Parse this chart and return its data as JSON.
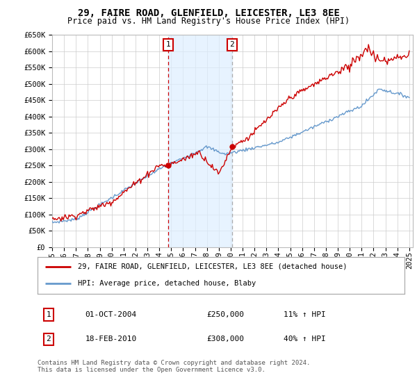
{
  "title": "29, FAIRE ROAD, GLENFIELD, LEICESTER, LE3 8EE",
  "subtitle": "Price paid vs. HM Land Registry's House Price Index (HPI)",
  "legend_line1": "29, FAIRE ROAD, GLENFIELD, LEICESTER, LE3 8EE (detached house)",
  "legend_line2": "HPI: Average price, detached house, Blaby",
  "transaction1_date": "01-OCT-2004",
  "transaction1_price": "£250,000",
  "transaction1_hpi": "11% ↑ HPI",
  "transaction2_date": "18-FEB-2010",
  "transaction2_price": "£308,000",
  "transaction2_hpi": "40% ↑ HPI",
  "footer": "Contains HM Land Registry data © Crown copyright and database right 2024.\nThis data is licensed under the Open Government Licence v3.0.",
  "ylim": [
    0,
    650000
  ],
  "yticks": [
    0,
    50000,
    100000,
    150000,
    200000,
    250000,
    300000,
    350000,
    400000,
    450000,
    500000,
    550000,
    600000,
    650000
  ],
  "ytick_labels": [
    "£0",
    "£50K",
    "£100K",
    "£150K",
    "£200K",
    "£250K",
    "£300K",
    "£350K",
    "£400K",
    "£450K",
    "£500K",
    "£550K",
    "£600K",
    "£650K"
  ],
  "xtick_years": [
    1995,
    1996,
    1997,
    1998,
    1999,
    2000,
    2001,
    2002,
    2003,
    2004,
    2005,
    2006,
    2007,
    2008,
    2009,
    2010,
    2011,
    2012,
    2013,
    2014,
    2015,
    2016,
    2017,
    2018,
    2019,
    2020,
    2021,
    2022,
    2023,
    2024,
    2025
  ],
  "red_line_color": "#cc0000",
  "blue_line_color": "#6699cc",
  "shade_color": "#ddeeff",
  "transaction1_x": 2004.75,
  "transaction2_x": 2010.12,
  "transaction1_y": 250000,
  "transaction2_y": 308000,
  "grid_color": "#cccccc",
  "vline1_color": "#cc0000",
  "vline2_color": "#aaaaaa"
}
